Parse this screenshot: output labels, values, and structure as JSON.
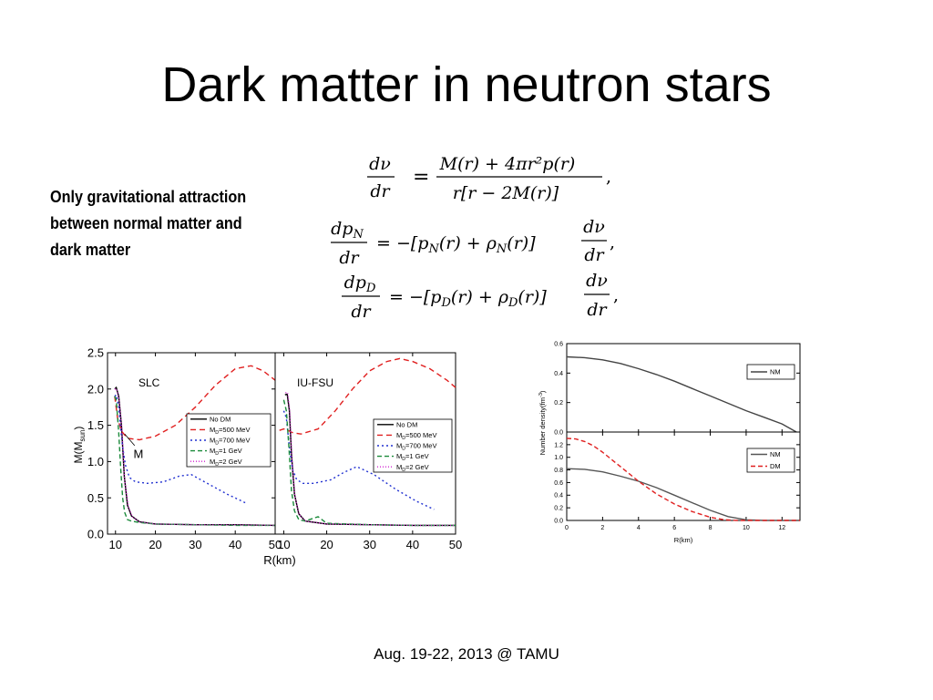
{
  "slide": {
    "title": "Dark matter in neutron stars",
    "note_lines": [
      "Only gravitational attraction",
      "between normal matter and",
      "dark matter"
    ],
    "footer": "Aug. 19-22, 2013 @ TAMU"
  },
  "equations": [
    {
      "lhs_num": "dν",
      "lhs_den": "dr",
      "rhs_num": "M(r) + 4πr²p(r)",
      "rhs_den": "r[r − 2M(r)]"
    },
    {
      "lhs_num": "dp",
      "lhs_num_sub": "N",
      "lhs_den": "dr",
      "rhs": "= −[p",
      "rhs_sub1": "N",
      "rhs_mid": "(r) + ρ",
      "rhs_sub2": "N",
      "rhs_end": "(r)]",
      "frac_num": "dν",
      "frac_den": "dr"
    },
    {
      "lhs_num": "dp",
      "lhs_num_sub": "D",
      "lhs_den": "dr",
      "rhs": "= −[p",
      "rhs_sub1": "D",
      "rhs_mid": "(r) + ρ",
      "rhs_sub2": "D",
      "rhs_end": "(r)]",
      "frac_num": "dν",
      "frac_den": "dr"
    }
  ],
  "chart_data": [
    {
      "type": "line",
      "panel": "SLC",
      "annotation": "M",
      "xlabel": "R(km)",
      "ylabel": "M(M",
      "ylabel_sub": "sun",
      "xlim": [
        8,
        50
      ],
      "ylim": [
        0,
        2.5
      ],
      "xticks": [
        10,
        20,
        30,
        40,
        50
      ],
      "yticks": [
        0.0,
        0.5,
        1.0,
        1.5,
        2.0,
        2.5
      ],
      "ytick_labels": [
        "0.0",
        "0.5",
        "1.0",
        "1.5",
        "2.0",
        "2.5"
      ],
      "legend_position": "right-center",
      "series": [
        {
          "name": "No DM",
          "color": "#000000",
          "dash": "",
          "x": [
            9.8,
            10.2,
            10.8,
            11.5,
            12.2,
            13,
            14,
            16,
            20,
            30,
            40,
            50
          ],
          "y": [
            2.0,
            2.02,
            1.9,
            1.5,
            0.8,
            0.4,
            0.25,
            0.17,
            0.14,
            0.13,
            0.13,
            0.12
          ]
        },
        {
          "name": "M_D=500 MeV",
          "color": "#e02020",
          "dash": "6,4",
          "x": [
            9.8,
            10.5,
            11.5,
            13,
            16,
            20,
            25,
            30,
            35,
            40,
            44,
            47,
            50
          ],
          "y": [
            1.9,
            1.6,
            1.42,
            1.32,
            1.3,
            1.35,
            1.5,
            1.75,
            2.05,
            2.28,
            2.32,
            2.25,
            2.12
          ]
        },
        {
          "name": "M_D=700 MeV",
          "color": "#2030d0",
          "dash": "2,3",
          "x": [
            9.8,
            10.2,
            10.8,
            11.2,
            11.8,
            12.5,
            13.5,
            15,
            18,
            22,
            26,
            29,
            33,
            38,
            43
          ],
          "y": [
            1.9,
            1.92,
            1.75,
            1.5,
            1.2,
            0.95,
            0.78,
            0.72,
            0.7,
            0.72,
            0.8,
            0.82,
            0.7,
            0.55,
            0.42
          ]
        },
        {
          "name": "M_D=1 GeV",
          "color": "#1a8a3a",
          "dash": "5,3",
          "x": [
            9.8,
            10.2,
            10.8,
            11.3,
            11.8,
            12.3,
            13,
            14,
            16,
            20,
            30,
            40,
            50
          ],
          "y": [
            1.9,
            1.85,
            1.4,
            0.9,
            0.5,
            0.3,
            0.2,
            0.18,
            0.16,
            0.14,
            0.13,
            0.12,
            0.12
          ]
        },
        {
          "name": "M_D=2 GeV",
          "color": "#d020d0",
          "dash": "1,2",
          "x": [
            9.8,
            10.3,
            10.9,
            11.6,
            12.3,
            13.2,
            14.2,
            16,
            20,
            30,
            40,
            50
          ],
          "y": [
            2.0,
            2.0,
            1.85,
            1.45,
            0.75,
            0.38,
            0.24,
            0.17,
            0.14,
            0.13,
            0.13,
            0.12
          ]
        }
      ]
    },
    {
      "type": "line",
      "panel": "IU-FSU",
      "xlabel": "",
      "xlim": [
        8,
        50
      ],
      "ylim": [
        0,
        2.5
      ],
      "xticks": [
        10,
        20,
        30,
        40,
        50
      ],
      "legend_position": "right-center",
      "series": [
        {
          "name": "No  DM",
          "color": "#000000",
          "dash": "",
          "x": [
            10.3,
            10.8,
            11.3,
            11.8,
            12.5,
            13.5,
            15,
            20,
            30,
            40,
            50
          ],
          "y": [
            1.92,
            1.93,
            1.7,
            1.1,
            0.55,
            0.28,
            0.18,
            0.14,
            0.13,
            0.12,
            0.12
          ]
        },
        {
          "name": "M_D=500 MeV",
          "color": "#e02020",
          "dash": "6,4",
          "x": [
            9,
            10,
            11,
            12,
            14,
            18,
            22,
            26,
            30,
            34,
            37,
            40,
            44,
            48,
            50
          ],
          "y": [
            1.43,
            1.45,
            1.43,
            1.4,
            1.38,
            1.45,
            1.7,
            2.0,
            2.25,
            2.38,
            2.42,
            2.38,
            2.28,
            2.12,
            2.02
          ]
        },
        {
          "name": "M_D=700 MeV",
          "color": "#2030d0",
          "dash": "2,3",
          "x": [
            10,
            10.6,
            11.3,
            12,
            13,
            14.5,
            17,
            21,
            24,
            27,
            31,
            36,
            41,
            45
          ],
          "y": [
            1.7,
            1.6,
            1.2,
            0.9,
            0.75,
            0.7,
            0.7,
            0.75,
            0.85,
            0.93,
            0.82,
            0.62,
            0.45,
            0.34
          ]
        },
        {
          "name": "M_D=1 GeV",
          "color": "#1a8a3a",
          "dash": "5,3",
          "x": [
            10,
            10.6,
            11.2,
            11.8,
            12.5,
            13.5,
            15,
            18,
            20,
            30,
            40,
            50
          ],
          "y": [
            1.85,
            1.7,
            1.2,
            0.6,
            0.32,
            0.2,
            0.18,
            0.24,
            0.15,
            0.13,
            0.12,
            0.12
          ]
        },
        {
          "name": "M_D=2 GeV",
          "color": "#d020d0",
          "dash": "1,2",
          "x": [
            10.4,
            10.9,
            11.4,
            11.9,
            12.6,
            13.6,
            15,
            20,
            30,
            40,
            50
          ],
          "y": [
            1.95,
            1.95,
            1.7,
            1.05,
            0.52,
            0.27,
            0.18,
            0.14,
            0.13,
            0.12,
            0.12
          ]
        }
      ]
    },
    {
      "type": "line",
      "panel": "top",
      "xlim": [
        0,
        13
      ],
      "ylim": [
        0,
        0.6
      ],
      "yticks": [
        0.0,
        0.2,
        0.4,
        0.6
      ],
      "ytick_labels": [
        "0.0",
        "0.2",
        "0.4",
        "0.6"
      ],
      "legend_position": "right",
      "series": [
        {
          "name": "NM",
          "color": "#444444",
          "dash": "",
          "x": [
            0,
            1,
            2,
            3,
            4,
            5,
            6,
            7,
            8,
            9,
            10,
            11,
            12,
            12.8
          ],
          "y": [
            0.51,
            0.505,
            0.49,
            0.465,
            0.43,
            0.39,
            0.345,
            0.295,
            0.245,
            0.195,
            0.145,
            0.1,
            0.055,
            0.0
          ]
        }
      ]
    },
    {
      "type": "line",
      "panel": "bottom",
      "xlabel": "R(km)",
      "ylabel": "Number density(fm",
      "ylabel_sup": "-3",
      "ylabel_end": ")",
      "xlim": [
        0,
        13
      ],
      "ylim": [
        0,
        1.4
      ],
      "xticks": [
        0,
        2,
        4,
        6,
        8,
        10,
        12
      ],
      "yticks": [
        0.0,
        0.2,
        0.4,
        0.6,
        0.8,
        1.0,
        1.2
      ],
      "ytick_labels": [
        "0.0",
        "0.2",
        "0.4",
        "0.6",
        "0.8",
        "1.0",
        "1.2"
      ],
      "legend_position": "top-right",
      "series": [
        {
          "name": "NM",
          "color": "#555555",
          "dash": "",
          "x": [
            0,
            1,
            2,
            3,
            4,
            5,
            6,
            7,
            8,
            9,
            10,
            11,
            13
          ],
          "y": [
            0.82,
            0.81,
            0.77,
            0.7,
            0.62,
            0.52,
            0.4,
            0.28,
            0.16,
            0.06,
            0.01,
            0.0,
            0.0
          ]
        },
        {
          "name": "DM",
          "color": "#e02020",
          "dash": "5,3",
          "x": [
            0,
            0.5,
            1,
            1.5,
            2,
            3,
            4,
            5,
            6,
            7,
            8,
            8.8,
            9.5,
            13
          ],
          "y": [
            1.3,
            1.29,
            1.25,
            1.18,
            1.08,
            0.85,
            0.62,
            0.42,
            0.26,
            0.14,
            0.05,
            0.01,
            0.0,
            0.0
          ]
        }
      ]
    }
  ]
}
